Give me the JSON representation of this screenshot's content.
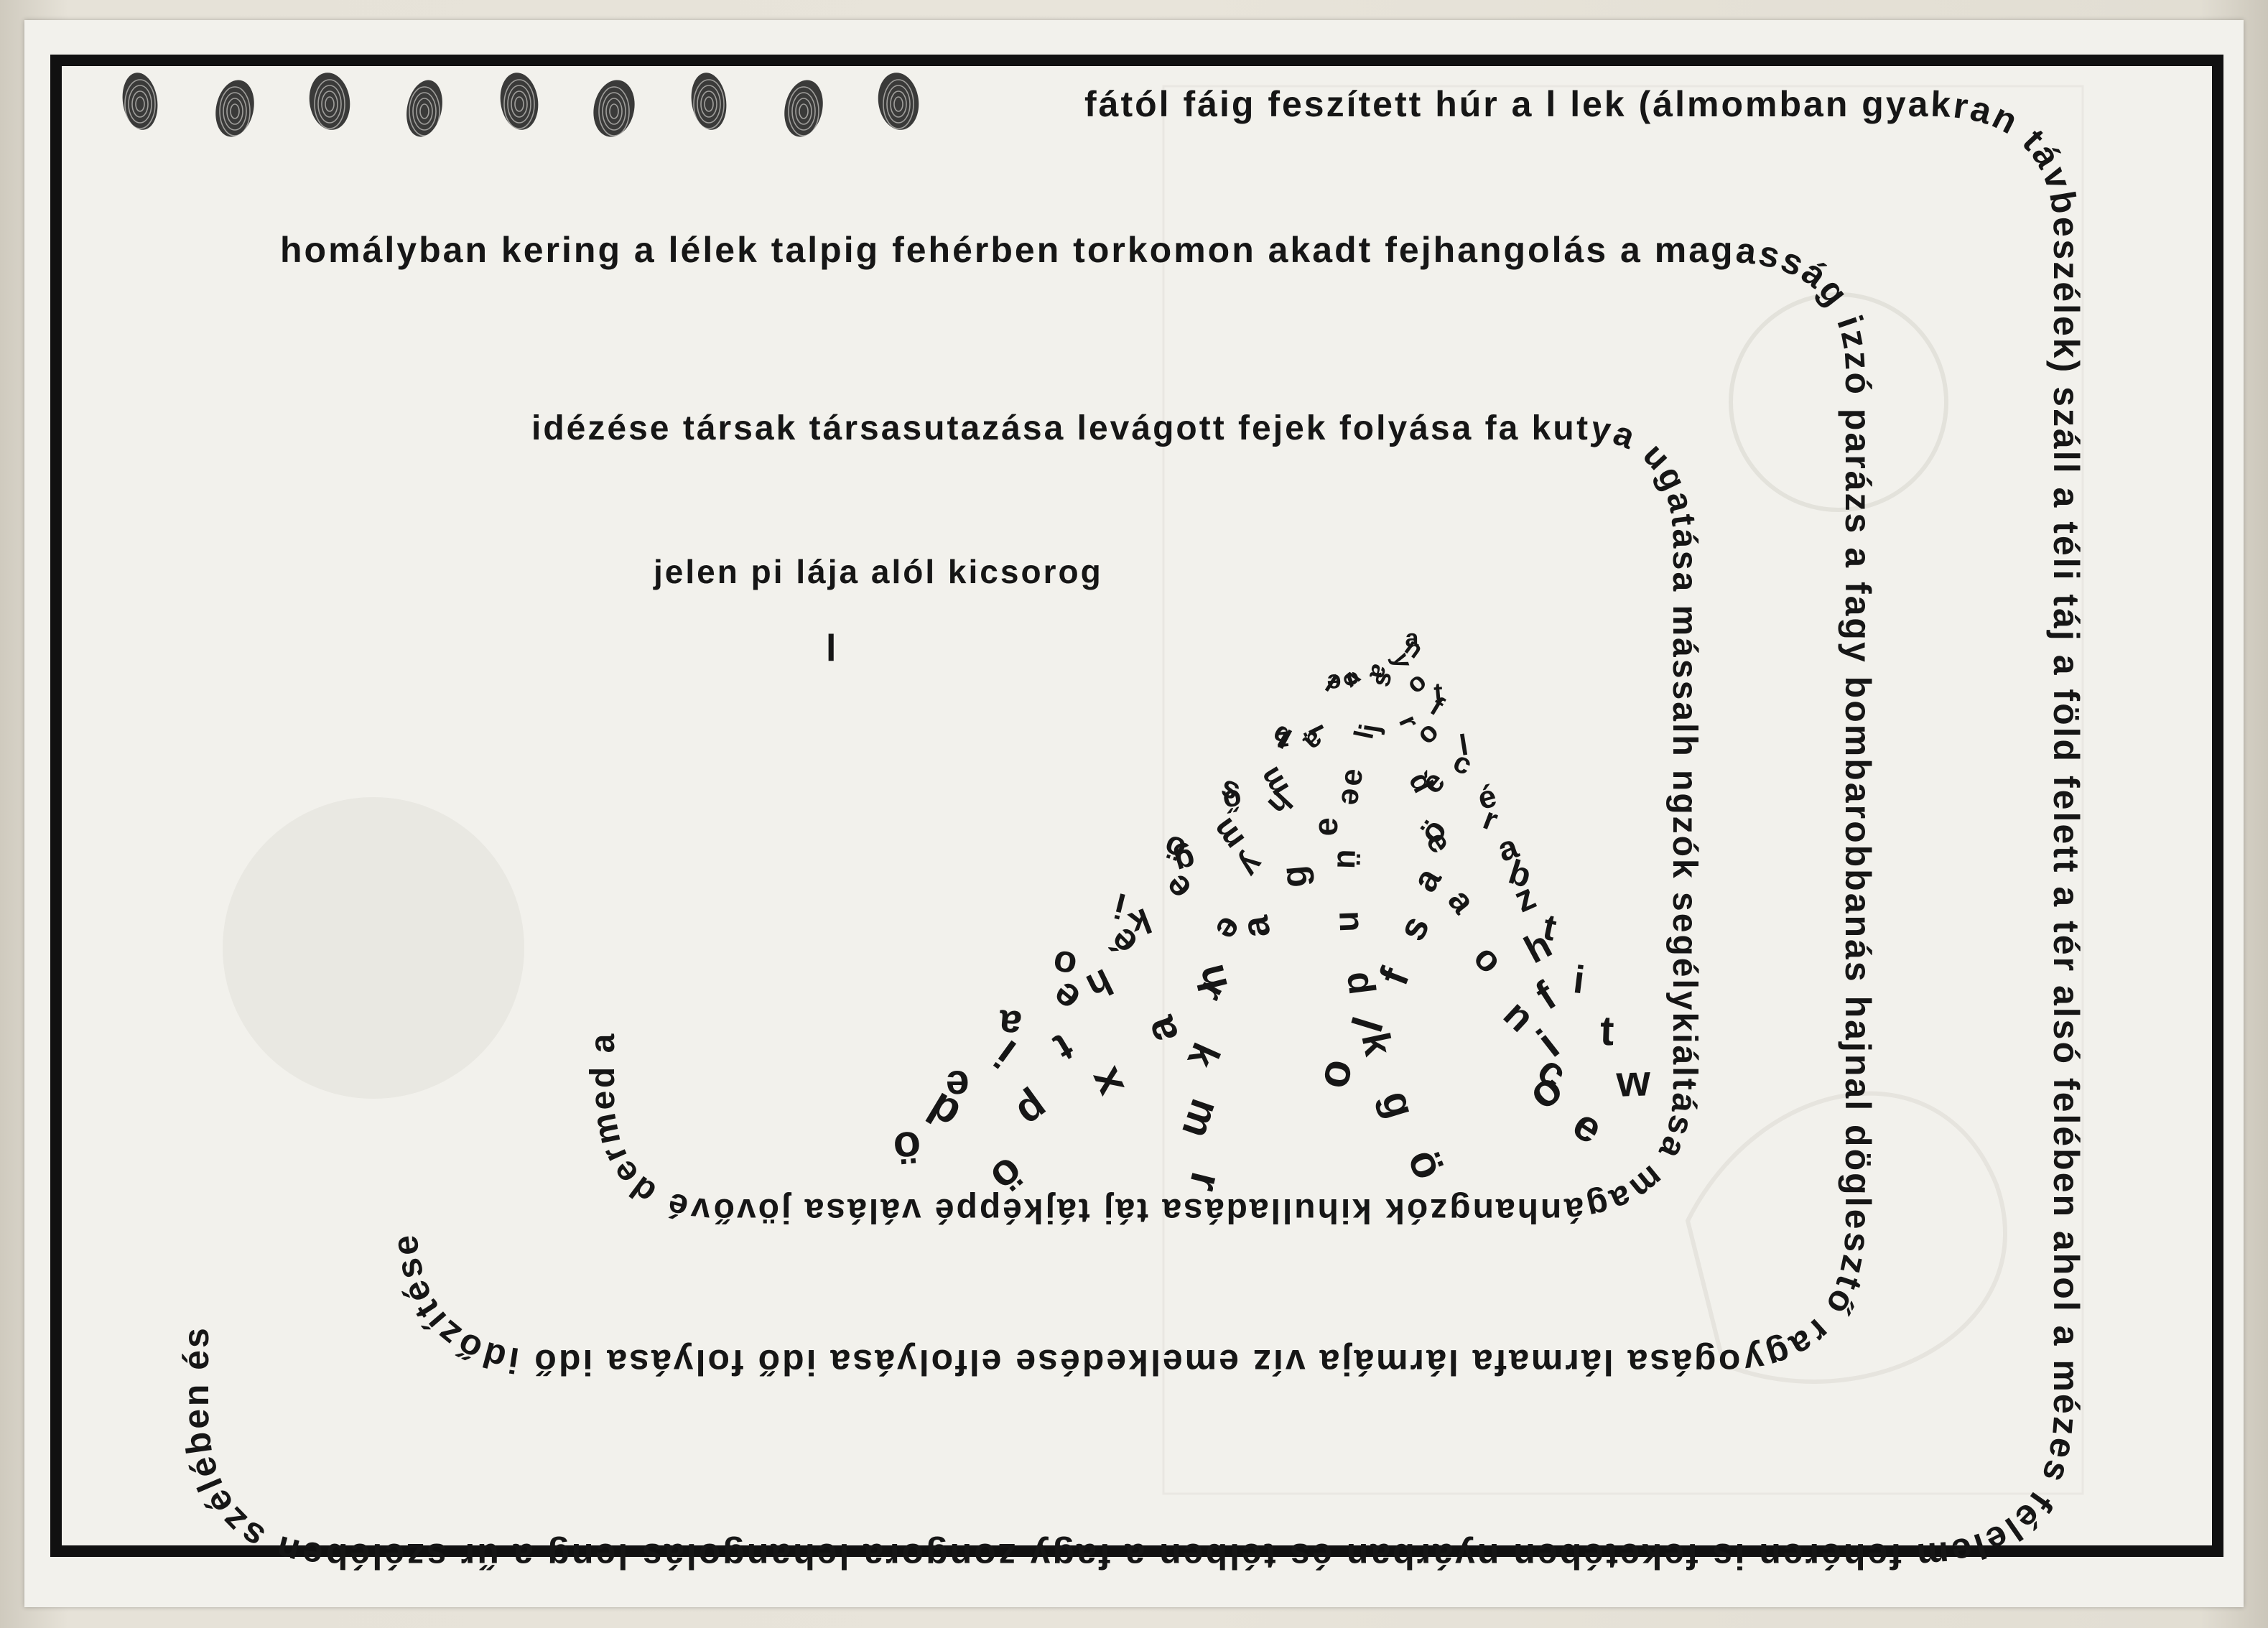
{
  "poem": {
    "top_line": "fától fáig feszített húr a l lek (álmomban gyakran",
    "right_line": "távbeszélek) száll a téli táj a föld felett a tér alsó felében",
    "bottom_line": "ahol a mézes félelem fehéren is feketében nyárban és télben a fagy zongora",
    "left_line": "lehangolás leng a űr szélében szélében és",
    "line2_top": "homályban kering a lélek talpig fehérben torkomon akadt fejhangolás",
    "line2_right": "a magasság izzó parázs a fagy bombarobbanás",
    "line2_bottom": "hajnal döglesztő ragyogása lármafa lármája víz emelkedése",
    "line2_left": "elfolyása idő folyása idő időzítése",
    "line3_top": "idézése társak társasutazása levágott fejek folyása fa",
    "line3_right": "kutya ugatása mássalh ngzók segélykiáltása",
    "line3_bottom": "magánhangzók kihulladása táj tájképpé",
    "line3_left": "válása jövővé dermed a",
    "line4_top": "jelen pi lája alól kicsorog",
    "stray_letter": "l",
    "spiral_letters": [
      "a",
      "n",
      "y",
      "a",
      "v",
      "e",
      "l",
      "e",
      "s",
      "o",
      "t",
      "f",
      "r",
      "l",
      "a",
      "z",
      "b",
      "i",
      "j",
      "o",
      "l",
      "c",
      "d",
      "e",
      "h",
      "ő",
      "s",
      "m",
      "e",
      "é",
      "é",
      "r",
      "e",
      "ü",
      "y",
      "g",
      "ö",
      "m",
      "e",
      "ö",
      "a",
      "b",
      "a",
      "n",
      "e",
      "k",
      "i",
      "e",
      "g",
      "a",
      "z",
      "t",
      "o",
      "d",
      "r",
      "h",
      "o",
      "é",
      "a",
      "s",
      "h",
      "i",
      "n",
      "k",
      "k",
      "t",
      "a",
      "e",
      "h",
      "f",
      "f",
      "t",
      "c",
      "g",
      "m",
      "p",
      "e",
      "i",
      "a",
      "l",
      "i",
      "w",
      "e",
      "ö",
      "r",
      "ö",
      "ö",
      "d",
      "x",
      "o",
      "o"
    ]
  },
  "fingerprints": {
    "count": 9,
    "color": "#1a1a1a"
  }
}
